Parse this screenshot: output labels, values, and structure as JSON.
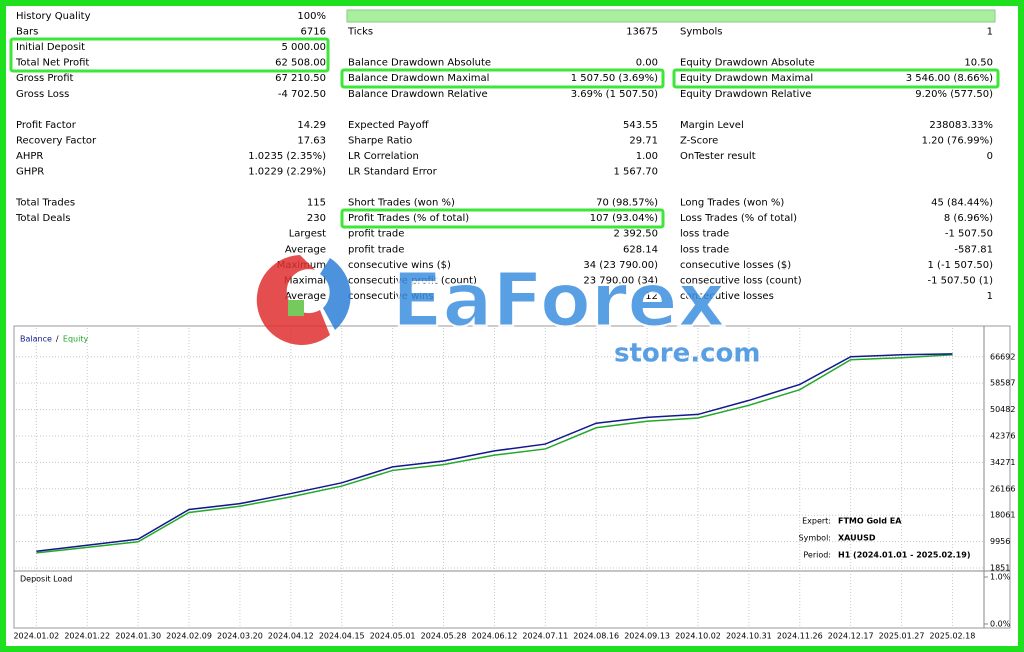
{
  "report": {
    "groups": [
      [
        [
          "History Quality",
          "100%",
          null,
          null,
          null,
          null
        ],
        [
          "Bars",
          "6716",
          "Ticks",
          "13675",
          "Symbols",
          "1"
        ],
        [
          "Initial Deposit",
          "5 000.00",
          null,
          null,
          null,
          null
        ],
        [
          "Total Net Profit",
          "62 508.00",
          "Balance Drawdown Absolute",
          "0.00",
          "Equity Drawdown Absolute",
          "10.50"
        ],
        [
          "Gross Profit",
          "67 210.50",
          "Balance Drawdown Maximal",
          "1 507.50 (3.69%)",
          "Equity Drawdown Maximal",
          "3 546.00 (8.66%)"
        ],
        [
          "Gross Loss",
          "-4 702.50",
          "Balance Drawdown Relative",
          "3.69% (1 507.50)",
          "Equity Drawdown Relative",
          "9.20% (577.50)"
        ]
      ],
      [
        [
          "Profit Factor",
          "14.29",
          "Expected Payoff",
          "543.55",
          "Margin Level",
          "238083.33%"
        ],
        [
          "Recovery Factor",
          "17.63",
          "Sharpe Ratio",
          "29.71",
          "Z-Score",
          "1.20 (76.99%)"
        ],
        [
          "AHPR",
          "1.0235 (2.35%)",
          "LR Correlation",
          "1.00",
          "OnTester result",
          "0"
        ],
        [
          "GHPR",
          "1.0229 (2.29%)",
          "LR Standard Error",
          "1 567.70",
          null,
          null
        ]
      ],
      [
        [
          "Total Trades",
          "115",
          "Short Trades (won %)",
          "70 (98.57%)",
          "Long Trades (won %)",
          "45 (84.44%)"
        ],
        [
          "Total Deals",
          "230",
          "Profit Trades (% of total)",
          "107 (93.04%)",
          "Loss Trades (% of total)",
          "8 (6.96%)"
        ],
        [
          null,
          "Largest",
          "profit trade",
          "2 392.50",
          "loss trade",
          "-1 507.50"
        ],
        [
          null,
          "Average",
          "profit trade",
          "628.14",
          "loss trade",
          "-587.81"
        ],
        [
          null,
          "Maximum",
          "consecutive wins ($)",
          "34 (23 790.00)",
          "consecutive losses ($)",
          "1 (-1 507.50)"
        ],
        [
          null,
          "Maximal",
          "consecutive profit (count)",
          "23 790.00 (34)",
          "consecutive loss (count)",
          "-1 507.50 (1)"
        ],
        [
          null,
          "Average",
          "consecutive wins",
          "12",
          "consecutive losses",
          "1"
        ]
      ]
    ]
  },
  "watermark": {
    "brand": "EaForex",
    "site": "store.com"
  },
  "chart_data": {
    "type": "line",
    "x": [
      "2024.01.02",
      "2024.01.22",
      "2024.01.30",
      "2024.02.09",
      "2024.03.20",
      "2024.04.12",
      "2024.04.15",
      "2024.05.01",
      "2024.05.28",
      "2024.06.12",
      "2024.07.11",
      "2024.08.16",
      "2024.09.13",
      "2024.10.02",
      "2024.10.31",
      "2024.11.26",
      "2024.12.17",
      "2025.01.27",
      "2025.02.18"
    ],
    "series": [
      {
        "name": "Balance",
        "color": "#10188c",
        "values": [
          7000,
          8850,
          10700,
          19800,
          21600,
          24700,
          28000,
          32900,
          34700,
          37800,
          39900,
          46300,
          48100,
          49000,
          53300,
          58200,
          66700,
          67300,
          67600
        ]
      },
      {
        "name": "Equity",
        "color": "#22a82a",
        "values": [
          6500,
          8200,
          9900,
          18900,
          20800,
          23700,
          27000,
          31800,
          33600,
          36500,
          38400,
          44900,
          46900,
          47900,
          51800,
          56600,
          65800,
          66400,
          67300
        ]
      }
    ],
    "ylim": [
      1851,
      74300
    ],
    "yticks": [
      1851,
      9956,
      18061,
      26166,
      34271,
      42376,
      50482,
      58587,
      66692
    ],
    "grid": true,
    "info": [
      [
        "Expert:",
        "FTMO Gold EA"
      ],
      [
        "Symbol:",
        "XAUUSD"
      ],
      [
        "Period:",
        "H1 (2024.01.01 - 2025.02.19)"
      ]
    ],
    "deposit_load": {
      "title": "Deposit Load",
      "ylim": [
        0,
        1
      ],
      "yticks": [
        {
          "value": 0,
          "label": "0.0%"
        },
        {
          "value": 1,
          "label": "1.0%"
        }
      ]
    }
  }
}
